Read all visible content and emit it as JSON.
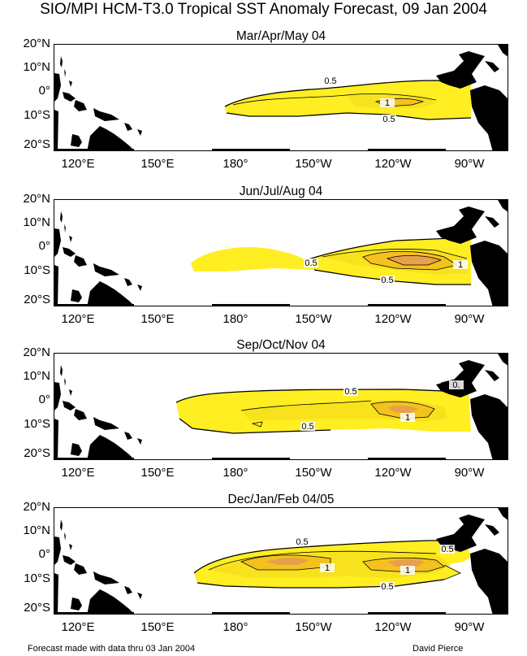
{
  "title": "SIO/MPI HCM-T3.0 Tropical SST Anomaly Forecast, 09 Jan 2004",
  "lat_labels": [
    "20°N",
    "10°N",
    "0°",
    "10°S",
    "20°S"
  ],
  "lon_labels": [
    "120°E",
    "150°E",
    "180°",
    "150°W",
    "120°W",
    "90°W"
  ],
  "panels": [
    {
      "title": "Mar/Apr/May 04",
      "contour_labels": [
        "0.5",
        "1",
        "0.5"
      ]
    },
    {
      "title": "Jun/Jul/Aug 04",
      "contour_labels": [
        "0.5",
        "1",
        "0.5"
      ]
    },
    {
      "title": "Sep/Oct/Nov 04",
      "contour_labels": [
        "0.5",
        "1",
        "0.5",
        "0."
      ]
    },
    {
      "title": "Dec/Jan/Feb 04/05",
      "contour_labels": [
        "0.5",
        "1",
        "1",
        "0.5",
        "0.5"
      ]
    }
  ],
  "footer": {
    "left": "Forecast made with data thru 03 Jan 2004",
    "right": "David Pierce"
  },
  "colors": {
    "land": "#000000",
    "anomaly_05": "#ffee22",
    "anomaly_1": "#f3c21e",
    "anomaly_15": "#e8a04a"
  }
}
